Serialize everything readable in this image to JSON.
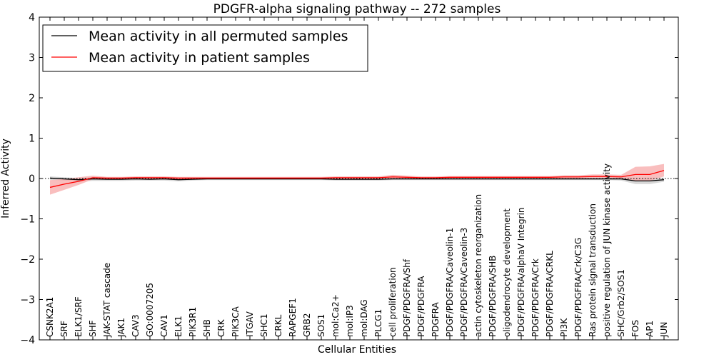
{
  "chart_data": {
    "type": "line",
    "title": "PDGFR-alpha signaling pathway -- 272 samples",
    "xlabel": "Cellular Entities",
    "ylabel": "Inferred Activity",
    "ylim": [
      -4,
      4
    ],
    "yticks": [
      -4,
      -3,
      -2,
      -1,
      0,
      1,
      2,
      3,
      4
    ],
    "ytick_labels": [
      "−4",
      "−3",
      "−2",
      "−1",
      "0",
      "1",
      "2",
      "3",
      "4"
    ],
    "legend_position": "top-left",
    "categories": [
      "CSNK2A1",
      "SRF",
      "ELK1/SRF",
      "SHF",
      "JAK-STAT cascade",
      "JAK1",
      "CAV3",
      "GO:0007205",
      "CAV1",
      "ELK1",
      "PIK3R1",
      "SHB",
      "CRK",
      "PIK3CA",
      "ITGAV",
      "SHC1",
      "CRKL",
      "RAPGEF1",
      "GRB2",
      "SOS1",
      "mol:Ca2+",
      "mol:IP3",
      "mol:DAG",
      "PLCG1",
      "cell proliferation",
      "PDGF/PDGFRA/Shf",
      "PDGF/PDGFRA",
      "PDGFRA",
      "PDGF/PDGFRA/Caveolin-1",
      "PDGF/PDGFRA/Caveolin-3",
      "actin cytoskeleton reorganization",
      "PDGF/PDGFRA/SHB",
      "oligodendrocyte development",
      "PDGF/PDGFRA/alphaV Integrin",
      "PDGF/PDGFRA/Crk",
      "PDGF/PDGFRA/CRKL",
      "PI3K",
      "PDGF/PDGFRA/Crk/C3G",
      "Ras protein signal transduction",
      "positive regulation of JUN kinase activity",
      "SHC/Grb2/SOS1",
      "FOS",
      "AP1",
      "JUN"
    ],
    "series": [
      {
        "name": "Mean activity in all permuted samples",
        "color": "#000000",
        "band_color": "#c8c8c8",
        "values": [
          0.01,
          -0.01,
          -0.03,
          -0.01,
          -0.02,
          -0.02,
          -0.01,
          -0.02,
          -0.01,
          -0.03,
          -0.02,
          -0.01,
          -0.01,
          -0.01,
          -0.01,
          -0.01,
          -0.01,
          -0.01,
          -0.01,
          -0.01,
          -0.02,
          -0.02,
          -0.02,
          -0.02,
          -0.01,
          -0.01,
          -0.01,
          -0.01,
          -0.01,
          -0.01,
          -0.01,
          -0.01,
          -0.01,
          -0.01,
          -0.01,
          -0.01,
          -0.01,
          -0.01,
          -0.01,
          -0.01,
          -0.01,
          -0.06,
          -0.06,
          -0.03
        ],
        "lower": [
          -0.03,
          -0.05,
          -0.07,
          -0.06,
          -0.06,
          -0.06,
          -0.05,
          -0.05,
          -0.05,
          -0.07,
          -0.05,
          -0.04,
          -0.04,
          -0.04,
          -0.04,
          -0.04,
          -0.04,
          -0.04,
          -0.04,
          -0.04,
          -0.05,
          -0.05,
          -0.05,
          -0.05,
          -0.04,
          -0.04,
          -0.04,
          -0.04,
          -0.04,
          -0.04,
          -0.04,
          -0.04,
          -0.04,
          -0.04,
          -0.04,
          -0.04,
          -0.04,
          -0.04,
          -0.04,
          -0.04,
          -0.05,
          -0.14,
          -0.14,
          -0.08
        ],
        "upper": [
          0.05,
          0.03,
          0.01,
          0.03,
          0.02,
          0.02,
          0.03,
          0.01,
          0.03,
          0.01,
          0.01,
          0.02,
          0.02,
          0.02,
          0.02,
          0.02,
          0.02,
          0.02,
          0.02,
          0.02,
          0.01,
          0.01,
          0.01,
          0.01,
          0.02,
          0.02,
          0.02,
          0.02,
          0.02,
          0.02,
          0.02,
          0.02,
          0.02,
          0.02,
          0.02,
          0.02,
          0.02,
          0.02,
          0.02,
          0.02,
          0.03,
          0.02,
          0.02,
          0.02
        ]
      },
      {
        "name": "Mean activity in patient samples",
        "color": "#ff0000",
        "band_color": "#f7a8a8",
        "values": [
          -0.22,
          -0.14,
          -0.07,
          0.02,
          0.01,
          0.01,
          0.02,
          0.02,
          0.02,
          0.01,
          0.01,
          0.01,
          0.01,
          0.01,
          0.01,
          0.01,
          0.01,
          0.01,
          0.01,
          0.01,
          0.02,
          0.02,
          0.02,
          0.02,
          0.04,
          0.03,
          0.02,
          0.02,
          0.03,
          0.03,
          0.03,
          0.03,
          0.03,
          0.03,
          0.03,
          0.03,
          0.04,
          0.04,
          0.05,
          0.05,
          0.04,
          0.1,
          0.1,
          0.2
        ],
        "lower": [
          -0.4,
          -0.28,
          -0.16,
          -0.02,
          -0.02,
          -0.02,
          -0.01,
          -0.01,
          -0.01,
          -0.02,
          -0.02,
          -0.02,
          -0.02,
          -0.02,
          -0.02,
          -0.02,
          -0.02,
          -0.02,
          -0.02,
          -0.02,
          -0.01,
          -0.01,
          -0.01,
          -0.01,
          0.0,
          -0.01,
          -0.01,
          -0.01,
          -0.01,
          -0.01,
          -0.01,
          -0.01,
          -0.01,
          -0.01,
          -0.01,
          -0.01,
          0.0,
          0.0,
          0.01,
          0.01,
          0.0,
          -0.06,
          -0.06,
          0.05
        ],
        "upper": [
          -0.04,
          -0.01,
          0.03,
          0.07,
          0.04,
          0.04,
          0.05,
          0.05,
          0.05,
          0.04,
          0.04,
          0.04,
          0.04,
          0.04,
          0.04,
          0.04,
          0.04,
          0.04,
          0.04,
          0.04,
          0.05,
          0.05,
          0.05,
          0.05,
          0.09,
          0.07,
          0.05,
          0.05,
          0.06,
          0.06,
          0.06,
          0.06,
          0.06,
          0.06,
          0.06,
          0.06,
          0.08,
          0.08,
          0.1,
          0.1,
          0.09,
          0.29,
          0.3,
          0.36
        ]
      }
    ]
  }
}
